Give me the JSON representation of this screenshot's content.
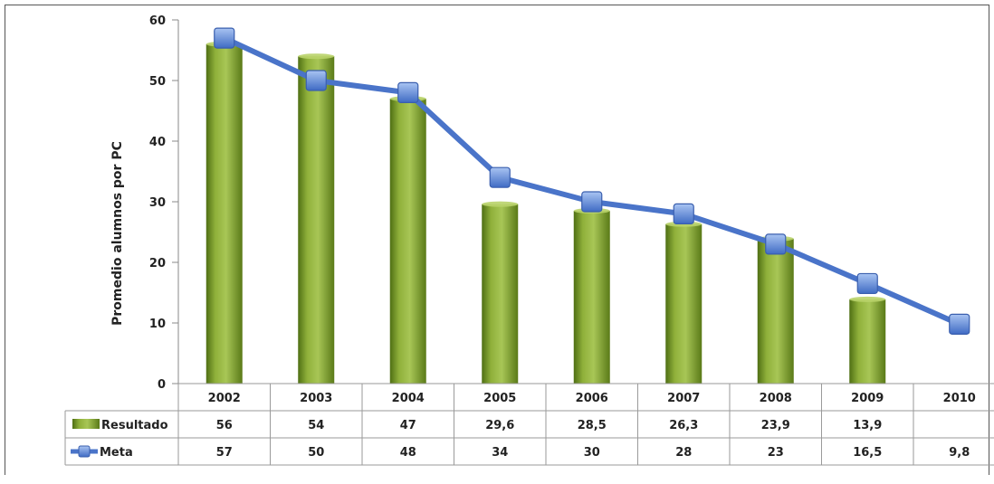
{
  "chart_data": {
    "type": "bar",
    "ylabel": "Promedio alumnos por PC",
    "ylim": [
      0,
      60
    ],
    "yticks": [
      0,
      10,
      20,
      30,
      40,
      50,
      60
    ],
    "categories": [
      "2002",
      "2003",
      "2004",
      "2005",
      "2006",
      "2007",
      "2008",
      "2009",
      "2010"
    ],
    "series": [
      {
        "name": "Resultado",
        "type": "bar",
        "color": "#7a9a2c",
        "values": [
          56,
          54,
          47,
          29.6,
          28.5,
          26.3,
          23.9,
          13.9,
          null
        ],
        "labels": [
          "56",
          "54",
          "47",
          "29,6",
          "28,5",
          "26,3",
          "23,9",
          "13,9",
          ""
        ]
      },
      {
        "name": "Meta",
        "type": "line",
        "color": "#4a74c9",
        "values": [
          57,
          50,
          48,
          34,
          30,
          28,
          23,
          16.5,
          9.8
        ],
        "labels": [
          "57",
          "50",
          "48",
          "34",
          "30",
          "28",
          "23",
          "16,5",
          "9,8"
        ]
      }
    ],
    "legend": "data-table",
    "grid": false
  }
}
